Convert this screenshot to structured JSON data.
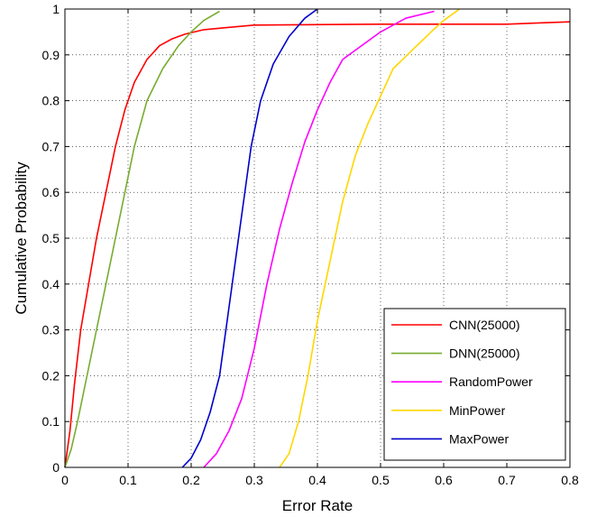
{
  "chart_data": {
    "type": "line",
    "xlabel": "Error Rate",
    "ylabel": "Cumulative Probability",
    "xlim": [
      0,
      0.8
    ],
    "ylim": [
      0,
      1
    ],
    "xticks": [
      0,
      0.1,
      0.2,
      0.3,
      0.4,
      0.5,
      0.6,
      0.7,
      0.8
    ],
    "xtick_labels": [
      "0",
      "0.1",
      "0.2",
      "0.3",
      "0.4",
      "0.5",
      "0.6",
      "0.7",
      "0.8"
    ],
    "yticks": [
      0,
      0.1,
      0.2,
      0.3,
      0.4,
      0.5,
      0.6,
      0.7,
      0.8,
      0.9,
      1
    ],
    "ytick_labels": [
      "0",
      "0.1",
      "0.2",
      "0.3",
      "0.4",
      "0.5",
      "0.6",
      "0.7",
      "0.8",
      "0.9",
      "1"
    ],
    "grid": true,
    "legend_position": "bottom-right",
    "series": [
      {
        "name": "CNN(25000)",
        "color": "#ff0000",
        "points": [
          [
            0,
            0
          ],
          [
            0.008,
            0.08
          ],
          [
            0.015,
            0.18
          ],
          [
            0.025,
            0.3
          ],
          [
            0.04,
            0.42
          ],
          [
            0.05,
            0.5
          ],
          [
            0.065,
            0.6
          ],
          [
            0.08,
            0.7
          ],
          [
            0.095,
            0.78
          ],
          [
            0.11,
            0.84
          ],
          [
            0.13,
            0.89
          ],
          [
            0.15,
            0.92
          ],
          [
            0.17,
            0.935
          ],
          [
            0.19,
            0.945
          ],
          [
            0.22,
            0.955
          ],
          [
            0.26,
            0.96
          ],
          [
            0.3,
            0.965
          ],
          [
            0.5,
            0.967
          ],
          [
            0.7,
            0.967
          ],
          [
            0.76,
            0.97
          ],
          [
            0.8,
            0.972
          ]
        ]
      },
      {
        "name": "DNN(25000)",
        "color": "#77ac30",
        "points": [
          [
            0,
            0
          ],
          [
            0.01,
            0.04
          ],
          [
            0.02,
            0.1
          ],
          [
            0.035,
            0.2
          ],
          [
            0.05,
            0.3
          ],
          [
            0.065,
            0.4
          ],
          [
            0.08,
            0.5
          ],
          [
            0.095,
            0.6
          ],
          [
            0.11,
            0.7
          ],
          [
            0.13,
            0.8
          ],
          [
            0.155,
            0.87
          ],
          [
            0.18,
            0.92
          ],
          [
            0.2,
            0.95
          ],
          [
            0.22,
            0.975
          ],
          [
            0.245,
            0.995
          ]
        ]
      },
      {
        "name": "RandomPower",
        "color": "#ff00ff",
        "points": [
          [
            0.22,
            0
          ],
          [
            0.24,
            0.03
          ],
          [
            0.26,
            0.08
          ],
          [
            0.28,
            0.15
          ],
          [
            0.3,
            0.26
          ],
          [
            0.32,
            0.4
          ],
          [
            0.34,
            0.52
          ],
          [
            0.36,
            0.62
          ],
          [
            0.38,
            0.71
          ],
          [
            0.4,
            0.78
          ],
          [
            0.42,
            0.84
          ],
          [
            0.44,
            0.89
          ],
          [
            0.47,
            0.92
          ],
          [
            0.5,
            0.95
          ],
          [
            0.54,
            0.98
          ],
          [
            0.585,
            0.995
          ]
        ]
      },
      {
        "name": "MinPower",
        "color": "#ffd700",
        "points": [
          [
            0.34,
            0
          ],
          [
            0.355,
            0.03
          ],
          [
            0.37,
            0.1
          ],
          [
            0.385,
            0.2
          ],
          [
            0.4,
            0.32
          ],
          [
            0.42,
            0.45
          ],
          [
            0.44,
            0.58
          ],
          [
            0.46,
            0.68
          ],
          [
            0.48,
            0.75
          ],
          [
            0.5,
            0.81
          ],
          [
            0.52,
            0.87
          ],
          [
            0.55,
            0.91
          ],
          [
            0.58,
            0.95
          ],
          [
            0.6,
            0.975
          ],
          [
            0.625,
            1.0
          ]
        ]
      },
      {
        "name": "MaxPower",
        "color": "#0000cc",
        "points": [
          [
            0.186,
            0
          ],
          [
            0.2,
            0.02
          ],
          [
            0.215,
            0.06
          ],
          [
            0.23,
            0.12
          ],
          [
            0.245,
            0.2
          ],
          [
            0.255,
            0.3
          ],
          [
            0.265,
            0.4
          ],
          [
            0.275,
            0.5
          ],
          [
            0.285,
            0.6
          ],
          [
            0.295,
            0.7
          ],
          [
            0.31,
            0.8
          ],
          [
            0.33,
            0.88
          ],
          [
            0.355,
            0.94
          ],
          [
            0.38,
            0.98
          ],
          [
            0.4,
            1.0
          ]
        ]
      }
    ]
  }
}
